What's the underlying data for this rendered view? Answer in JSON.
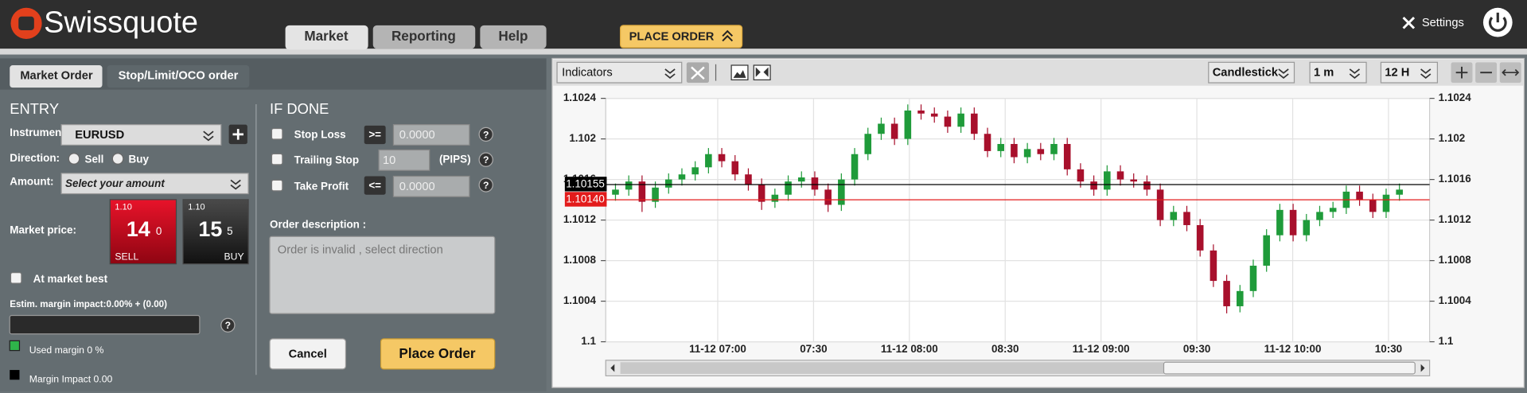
{
  "header": {
    "logo": "Swissquote",
    "tabs": [
      "Market",
      "Reporting",
      "Help"
    ],
    "place_order": "PLACE ORDER",
    "settings": "Settings"
  },
  "order_panel": {
    "tabs": [
      "Market Order",
      "Stop/Limit/OCO order"
    ],
    "entry": {
      "title": "ENTRY",
      "instrument_label": "Instrument",
      "instrument": "EURUSD",
      "direction_label": "Direction:",
      "sell": "Sell",
      "buy": "Buy",
      "amount_label": "Amount:",
      "amount_placeholder": "Select your amount",
      "market_price_label": "Market price:",
      "sell_price": {
        "big": "1.10",
        "main": "14",
        "small": "0",
        "label": "SELL"
      },
      "buy_price": {
        "big": "1.10",
        "main": "15",
        "small": "5",
        "label": "BUY"
      },
      "at_market_best": "At market best",
      "margin_impact": "Estim. margin impact:0.00%  + (0.00)",
      "used_margin": "Used margin 0 %",
      "margin_impact_legend": "Margin Impact 0.00"
    },
    "if_done": {
      "title": "IF DONE",
      "stop_loss": "Stop Loss",
      "stop_loss_op": ">=",
      "stop_loss_value": "0.0000",
      "trailing_stop": "Trailing Stop",
      "trailing_value": "10",
      "pips": "(PIPS)",
      "take_profit": "Take Profit",
      "take_profit_op": "<=",
      "take_profit_value": "0.0000",
      "order_description_label": "Order description :",
      "order_description_placeholder": "Order is invalid , select direction",
      "cancel": "Cancel",
      "place_order": "Place Order"
    }
  },
  "chart_toolbar": {
    "indicators": "Indicators",
    "chart_type": "Candlestick",
    "interval": "1 m",
    "range": "12 H"
  },
  "chart_data": {
    "type": "candlestick",
    "up_color": "#1f9b3a",
    "down_color": "#a8102c",
    "grid": true,
    "ylim": [
      1.1,
      1.1024
    ],
    "yticks": [
      1.1,
      1.1004,
      1.1008,
      1.1012,
      1.1016,
      1.102,
      1.1024
    ],
    "xtick_labels": [
      "11-12 07:00",
      "07:30",
      "11-12 08:00",
      "08:30",
      "11-12 09:00",
      "09:30",
      "11-12 10:00",
      "10:30"
    ],
    "price_lines": [
      {
        "value": 1.10155,
        "color": "#000000"
      },
      {
        "value": 1.1014,
        "label": "1.10140",
        "color": "#e31b1b"
      }
    ],
    "open": [
      1.10145,
      1.1015,
      1.10158,
      1.10138,
      1.10152,
      1.1016,
      1.10165,
      1.10172,
      1.10185,
      1.10178,
      1.10165,
      1.10155,
      1.10138,
      1.10145,
      1.10158,
      1.10162,
      1.1015,
      1.10135,
      1.1016,
      1.10185,
      1.10205,
      1.10215,
      1.102,
      1.10228,
      1.10225,
      1.10222,
      1.10212,
      1.10225,
      1.10205,
      1.10188,
      1.10195,
      1.10182,
      1.1019,
      1.10185,
      1.10195,
      1.1017,
      1.10158,
      1.1015,
      1.10168,
      1.1016,
      1.10158,
      1.1015,
      1.1012,
      1.10128,
      1.10115,
      1.1009,
      1.1006,
      1.10035,
      1.1005,
      1.10075,
      1.10105,
      1.1013,
      1.10105,
      1.1012,
      1.10128,
      1.10132,
      1.10148,
      1.1014,
      1.10128,
      1.10145
    ],
    "high": [
      1.10156,
      1.10164,
      1.10164,
      1.10158,
      1.10166,
      1.10171,
      1.10178,
      1.10191,
      1.10191,
      1.10184,
      1.10171,
      1.10161,
      1.10151,
      1.10164,
      1.10168,
      1.10168,
      1.10156,
      1.10166,
      1.10191,
      1.10211,
      1.10221,
      1.10221,
      1.10234,
      1.10234,
      1.10231,
      1.10228,
      1.10231,
      1.10231,
      1.10211,
      1.10201,
      1.10201,
      1.10196,
      1.10196,
      1.10201,
      1.10201,
      1.10176,
      1.10164,
      1.10174,
      1.10174,
      1.10166,
      1.10164,
      1.10156,
      1.10134,
      1.10134,
      1.10121,
      1.10096,
      1.10066,
      1.10056,
      1.10081,
      1.10111,
      1.10136,
      1.10136,
      1.10126,
      1.10134,
      1.10138,
      1.10154,
      1.10154,
      1.10146,
      1.10151,
      1.10156
    ],
    "low": [
      1.10139,
      1.10144,
      1.10128,
      1.10132,
      1.10146,
      1.10154,
      1.10159,
      1.10166,
      1.10172,
      1.10159,
      1.10149,
      1.1013,
      1.10132,
      1.10139,
      1.10152,
      1.10144,
      1.10128,
      1.10129,
      1.10154,
      1.10179,
      1.10199,
      1.10194,
      1.10194,
      1.10219,
      1.10216,
      1.10206,
      1.10206,
      1.10199,
      1.10182,
      1.10182,
      1.10176,
      1.10176,
      1.10179,
      1.10179,
      1.10164,
      1.10152,
      1.10144,
      1.10144,
      1.10154,
      1.10152,
      1.10144,
      1.10114,
      1.10114,
      1.10109,
      1.10084,
      1.10054,
      1.10028,
      1.10029,
      1.10044,
      1.10069,
      1.10099,
      1.10099,
      1.10099,
      1.10114,
      1.10122,
      1.10126,
      1.10134,
      1.10122,
      1.10122,
      1.10139
    ],
    "close": [
      1.1015,
      1.10158,
      1.10138,
      1.10152,
      1.1016,
      1.10165,
      1.10172,
      1.10185,
      1.10178,
      1.10165,
      1.10155,
      1.10138,
      1.10145,
      1.10158,
      1.10162,
      1.1015,
      1.10135,
      1.1016,
      1.10185,
      1.10205,
      1.10215,
      1.102,
      1.10228,
      1.10225,
      1.10222,
      1.10212,
      1.10225,
      1.10205,
      1.10188,
      1.10195,
      1.10182,
      1.1019,
      1.10185,
      1.10195,
      1.1017,
      1.10158,
      1.1015,
      1.10168,
      1.1016,
      1.10158,
      1.1015,
      1.1012,
      1.10128,
      1.10115,
      1.1009,
      1.1006,
      1.10035,
      1.1005,
      1.10075,
      1.10105,
      1.1013,
      1.10105,
      1.1012,
      1.10128,
      1.10132,
      1.10148,
      1.1014,
      1.10128,
      1.10145,
      1.1015
    ]
  }
}
